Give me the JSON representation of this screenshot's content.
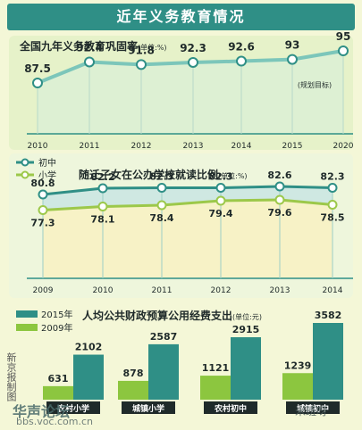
{
  "header": {
    "title": "近年义务教育情况"
  },
  "chart_data": [
    {
      "type": "line",
      "title": "全国九年义务教育巩固率",
      "unit": "(单位:%)",
      "categories": [
        "2010",
        "2011",
        "2012",
        "2013",
        "2014",
        "2015",
        "2020"
      ],
      "series": [
        {
          "values": [
            87.5,
            92.4,
            91.8,
            92.3,
            92.6,
            93,
            95
          ]
        }
      ],
      "annotation": "(规划目标)",
      "colors": {
        "line": "#7cc6ba",
        "marker": "#2f8f86",
        "fill": "#dbefd6"
      }
    },
    {
      "type": "line",
      "title": "随迁子女在公办学校就读比例",
      "unit": "(单位:%)",
      "categories": [
        "2009",
        "2010",
        "2011",
        "2012",
        "2013",
        "2014"
      ],
      "series": [
        {
          "name": "初中",
          "values": [
            80.8,
            82.2,
            82.3,
            82.3,
            82.6,
            82.3
          ],
          "color": "#2f8f86"
        },
        {
          "name": "小学",
          "values": [
            77.3,
            78.1,
            78.4,
            79.4,
            79.6,
            78.5
          ],
          "color": "#9cc84a"
        }
      ]
    },
    {
      "type": "bar",
      "title": "人均公共财政预算公用经费支出",
      "unit": "(单位:元)",
      "categories": [
        "农村小学",
        "城镇小学",
        "农村初中",
        "城镇初中"
      ],
      "series": [
        {
          "name": "2015年",
          "values": [
            2102,
            2587,
            2915,
            3582
          ],
          "color": "#2f8f86"
        },
        {
          "name": "2009年",
          "values": [
            631,
            878,
            1121,
            1239
          ],
          "color": "#8cc63f"
        }
      ]
    }
  ],
  "side_text": "新京报制图",
  "watermark_left": "华声论坛",
  "watermark_left_url": "bbs.voc.com.cn",
  "watermark_right": "米班呀"
}
